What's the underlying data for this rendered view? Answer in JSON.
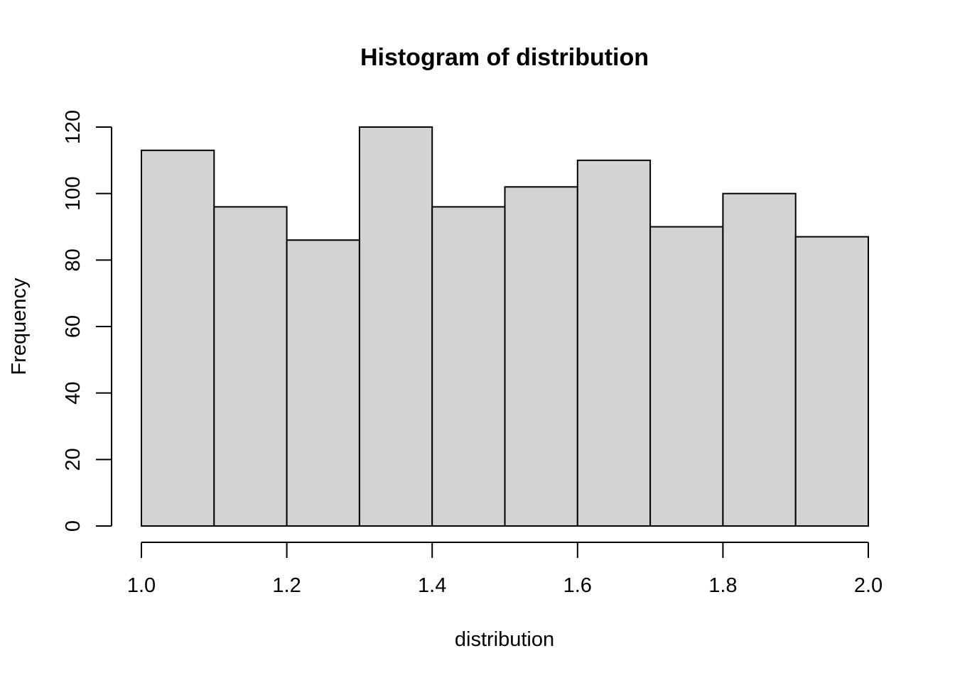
{
  "chart_data": {
    "type": "bar",
    "subtype": "histogram",
    "title": "Histogram of distribution",
    "xlabel": "distribution",
    "ylabel": "Frequency",
    "bins": [
      {
        "from": 1.0,
        "to": 1.1,
        "count": 113
      },
      {
        "from": 1.1,
        "to": 1.2,
        "count": 96
      },
      {
        "from": 1.2,
        "to": 1.3,
        "count": 86
      },
      {
        "from": 1.3,
        "to": 1.4,
        "count": 120
      },
      {
        "from": 1.4,
        "to": 1.5,
        "count": 96
      },
      {
        "from": 1.5,
        "to": 1.6,
        "count": 102
      },
      {
        "from": 1.6,
        "to": 1.7,
        "count": 110
      },
      {
        "from": 1.7,
        "to": 1.8,
        "count": 90
      },
      {
        "from": 1.8,
        "to": 1.9,
        "count": 100
      },
      {
        "from": 1.9,
        "to": 2.0,
        "count": 87
      }
    ],
    "xlim": [
      1.0,
      2.0
    ],
    "ylim": [
      0,
      120
    ],
    "x_ticks": [
      "1.0",
      "1.2",
      "1.4",
      "1.6",
      "1.8",
      "2.0"
    ],
    "y_ticks": [
      "0",
      "20",
      "40",
      "60",
      "80",
      "100",
      "120"
    ],
    "grid": false,
    "legend": "none",
    "colors": {
      "bar_fill": "#d3d3d3",
      "bar_stroke": "#000000",
      "axis": "#000000",
      "background": "#ffffff"
    }
  }
}
